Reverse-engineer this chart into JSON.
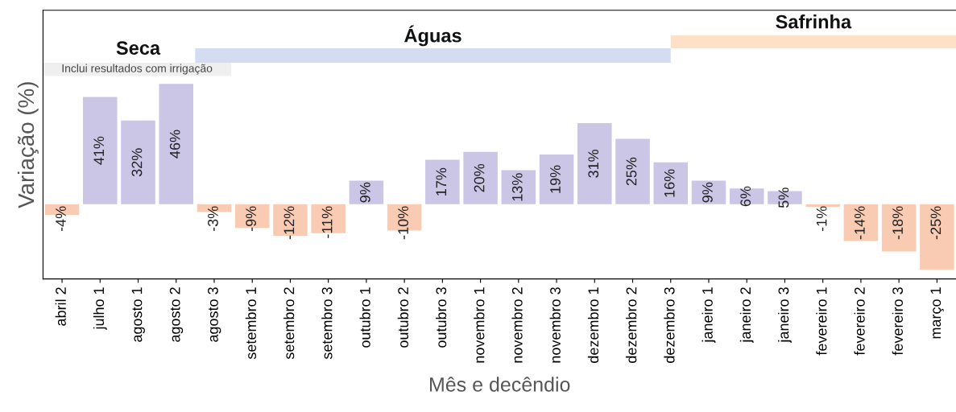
{
  "chart_data": {
    "type": "bar",
    "xlabel": "Mês e decêndio",
    "ylabel": "Variação (%)",
    "tick_labels": "x",
    "categories": [
      "abril 2",
      "julho 1",
      "agosto 1",
      "agosto 2",
      "agosto 3",
      "setembro 1",
      "setembro 2",
      "setembro 3",
      "outubro 1",
      "outubro 2",
      "outubro 3",
      "novembro 1",
      "novembro 2",
      "novembro 3",
      "dezembro 1",
      "dezembro 2",
      "dezembro 3",
      "janeiro 1",
      "janeiro 2",
      "janeiro 3",
      "fevereiro 1",
      "fevereiro 2",
      "fevereiro 3",
      "março 1"
    ],
    "values": [
      -4,
      41,
      32,
      46,
      -3,
      -9,
      -12,
      -11,
      9,
      -10,
      17,
      20,
      13,
      19,
      31,
      25,
      16,
      9,
      6,
      5,
      -1,
      -14,
      -18,
      -25
    ],
    "value_labels": [
      "-4%",
      "41%",
      "32%",
      "46%",
      "-3%",
      "-9%",
      "-12%",
      "-11%",
      "9%",
      "-10%",
      "17%",
      "20%",
      "13%",
      "19%",
      "31%",
      "25%",
      "16%",
      "9%",
      "6%",
      "5%",
      "-1%",
      "-14%",
      "-18%",
      "-25%"
    ],
    "colors": [
      "#f9cbb3",
      "#cbc5e6",
      "#cbc5e6",
      "#cbc5e6",
      "#f9cbb3",
      "#f9cbb3",
      "#f9cbb3",
      "#f9cbb3",
      "#cbc5e6",
      "#f9cbb3",
      "#cbc5e6",
      "#cbc5e6",
      "#cbc5e6",
      "#cbc5e6",
      "#cbc5e6",
      "#cbc5e6",
      "#cbc5e6",
      "#cbc5e6",
      "#cbc5e6",
      "#cbc5e6",
      "#f9cbb3",
      "#f9cbb3",
      "#f9cbb3",
      "#f9cbb3"
    ],
    "annotations": [
      "Seca",
      "Águas",
      "Safrinha",
      "Inclui resultados com irrigação"
    ]
  }
}
